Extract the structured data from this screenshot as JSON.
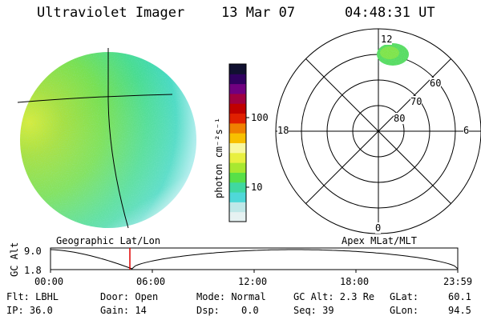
{
  "header": {
    "instrument": "Ultraviolet Imager",
    "date": "13 Mar 07",
    "time": "04:48:31 UT"
  },
  "colorbar": {
    "label": "photon cm⁻²s⁻¹",
    "tick_100": "100",
    "tick_10": "10",
    "colors": [
      "#e6f2f2",
      "#bfe8e8",
      "#4fd8d8",
      "#40d8a0",
      "#58e048",
      "#a8e830",
      "#e8f040",
      "#f8f8a0",
      "#f8c000",
      "#f08000",
      "#e02000",
      "#c00000",
      "#a00040",
      "#700080",
      "#300060",
      "#101030"
    ]
  },
  "polar": {
    "mlt_12": "12",
    "mlt_18": "18",
    "mlt_6": "6",
    "mlt_0": "0",
    "lat_60": "60",
    "lat_70": "70",
    "lat_80": "80"
  },
  "labels": {
    "geo": "Geographic Lat/Lon",
    "apex": "Apex MLat/MLT",
    "gc_alt_axis": "GC Alt",
    "alt_max": "9.0",
    "alt_min": "1.8"
  },
  "time_axis": [
    "00:00",
    "06:00",
    "12:00",
    "18:00",
    "23:59"
  ],
  "status": {
    "flt": "Flt: LBHL",
    "ip": "IP: 36.0",
    "door": "Door: Open",
    "gain": "Gain: 14",
    "mode": "Mode: Normal",
    "dsp_label": "Dsp:",
    "dsp_value": "0.0",
    "gc_alt": "GC Alt: 2.3 Re",
    "seq": "Seq: 39",
    "glat_label": "GLat:",
    "glat_value": "60.1",
    "glon_label": "GLon:",
    "glon_value": "94.5"
  }
}
